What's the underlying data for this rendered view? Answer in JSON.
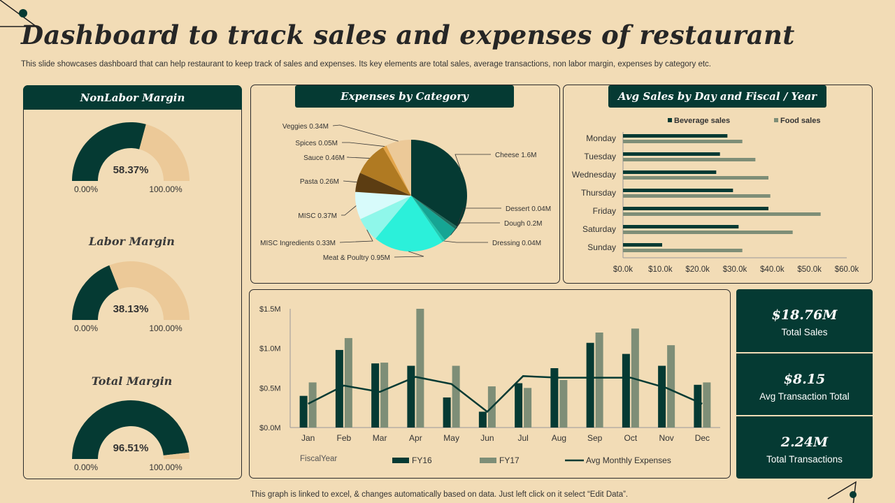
{
  "title": "Dashboard to track sales and expenses of restaurant",
  "subtitle": "This slide showcases dashboard that can help restaurant to keep track of sales and expenses. Its key elements are total sales, average transactions, non labor margin, expenses by category etc.",
  "footer": "This graph is linked to excel, & changes automatically based on data. Just left click on it select “Edit Data”.",
  "colors": {
    "dark": "#053a33",
    "light": "#ecc998",
    "grey": "#7e8e77",
    "bg": "#f2dcb6"
  },
  "gauges": {
    "panel_title": "NonLabor Margin",
    "min_label": "0.00%",
    "max_label": "100.00%",
    "items": [
      {
        "title": "NonLabor Margin",
        "value": 58.37,
        "label": "58.37%"
      },
      {
        "title": "Labor Margin",
        "value": 38.13,
        "label": "38.13%"
      },
      {
        "title": "Total Margin",
        "value": 96.51,
        "label": "96.51%"
      }
    ]
  },
  "kpis": [
    {
      "value": "$18.76M",
      "label": "Total Sales"
    },
    {
      "value": "$8.15",
      "label": "Avg Transaction Total"
    },
    {
      "value": "2.24M",
      "label": "Total Transactions"
    }
  ],
  "chart_data": [
    {
      "type": "pie",
      "title": "Expenses by Category",
      "slices": [
        {
          "name": "Cheese",
          "label": "Cheese 1.6M",
          "value": 1.6,
          "color": "#053a33"
        },
        {
          "name": "Dessert",
          "label": "Dessert 0.04M",
          "value": 0.04,
          "color": "#1f6b5e"
        },
        {
          "name": "Dough",
          "label": "Dough  0.2M",
          "value": 0.2,
          "color": "#16a594"
        },
        {
          "name": "Dressing",
          "label": "Dressing  0.04M",
          "value": 0.04,
          "color": "#20c9b2"
        },
        {
          "name": "Meat & Poultry",
          "label": "Meat & Poultry 0.95M",
          "value": 0.95,
          "color": "#2bf0da"
        },
        {
          "name": "MISC Ingredients",
          "label": "MISC  Ingredients 0.33M",
          "value": 0.33,
          "color": "#8ff7ea"
        },
        {
          "name": "MISC",
          "label": "MISC  0.37M",
          "value": 0.37,
          "color": "#d8fbfb"
        },
        {
          "name": "Pasta",
          "label": "Pasta 0.26M",
          "value": 0.26,
          "color": "#5c3d12"
        },
        {
          "name": "Sauce",
          "label": "Sauce 0.46M",
          "value": 0.46,
          "color": "#b07a22"
        },
        {
          "name": "Spices",
          "label": "Spices 0.05M",
          "value": 0.05,
          "color": "#e3a54a"
        },
        {
          "name": "Veggies",
          "label": "Veggies 0.34M",
          "value": 0.34,
          "color": "#ecc998"
        }
      ]
    },
    {
      "type": "bar",
      "orientation": "horizontal",
      "title": "Avg Sales by Day and Fiscal / Year",
      "categories": [
        "Monday",
        "Tuesday",
        "Wednesday",
        "Thursday",
        "Friday",
        "Saturday",
        "Sunday"
      ],
      "series": [
        {
          "name": "Beverage sales",
          "values": [
            28,
            26,
            25,
            29.5,
            39,
            31,
            10.5
          ],
          "color": "#053a33"
        },
        {
          "name": "Food sales",
          "values": [
            32,
            35.5,
            39,
            39.5,
            53,
            45.5,
            32
          ],
          "color": "#7e8e77"
        }
      ],
      "xlim": [
        0,
        60
      ],
      "xticks": [
        "$0.0k",
        "$10.0k",
        "$20.0k",
        "$30.0k",
        "$40.0k",
        "$50.0k",
        "$60.0k"
      ]
    },
    {
      "type": "bar",
      "title": "",
      "categories": [
        "Jan",
        "Feb",
        "Mar",
        "Apr",
        "May",
        "Jun",
        "Jul",
        "Aug",
        "Sep",
        "Oct",
        "Nov",
        "Dec"
      ],
      "series": [
        {
          "name": "FY16",
          "values": [
            0.4,
            0.98,
            0.81,
            0.78,
            0.38,
            0.2,
            0.56,
            0.75,
            1.07,
            0.93,
            0.78,
            0.54
          ],
          "color": "#053a33"
        },
        {
          "name": "FY17",
          "values": [
            0.57,
            1.13,
            0.82,
            1.5,
            0.78,
            0.52,
            0.5,
            0.6,
            1.2,
            1.25,
            1.04,
            0.57
          ],
          "color": "#7e8e77"
        },
        {
          "name": "Avg Monthly Expenses",
          "type": "line",
          "values": [
            0.3,
            0.53,
            0.45,
            0.64,
            0.55,
            0.2,
            0.65,
            0.63,
            0.63,
            0.63,
            0.5,
            0.3
          ],
          "color": "#053a33"
        }
      ],
      "ylim": [
        0,
        1.5
      ],
      "yticks": [
        "$0.0M",
        "$0.5M",
        "$1.0M",
        "$1.5M"
      ],
      "xlabel": "FiscalYear"
    }
  ]
}
